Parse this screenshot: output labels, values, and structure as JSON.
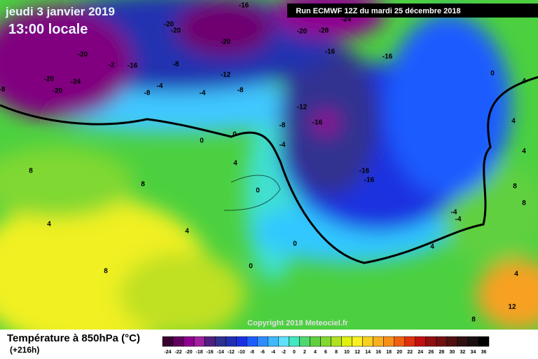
{
  "header": {
    "date": "jeudi 3 janvier 2019",
    "time": "13:00 locale",
    "run": "Run ECMWF 12Z du mardi 25 décembre 2018"
  },
  "map": {
    "copyright": "Copyright 2018 Meteociel.fr",
    "labels": [
      "-16",
      "-24",
      "-20",
      "-20",
      "-20",
      "-28",
      "-20",
      "-20",
      "-16",
      "-16",
      "-2",
      "-16",
      "-8",
      "-20",
      "-24",
      "-20",
      "-12",
      "-8",
      "-4",
      "-4",
      "-8",
      "-12",
      "-16",
      "-8",
      "0",
      "0",
      "-4",
      "4",
      "-16",
      "-16",
      "8",
      "8",
      "0",
      "4",
      "4",
      "8",
      "0",
      "4",
      "4",
      "4",
      "8",
      "8",
      "-4",
      "-4",
      "4",
      "0",
      "0",
      "8",
      "12",
      "4",
      "-8"
    ]
  },
  "legend": {
    "title": "Température à 850hPa (°C)",
    "lead": "(+216h)",
    "ticks": [
      "-24",
      "-22",
      "-20",
      "-18",
      "-16",
      "-14",
      "-12",
      "-10",
      "-8",
      "-6",
      "-4",
      "-2",
      "0",
      "2",
      "4",
      "6",
      "8",
      "10",
      "12",
      "14",
      "16",
      "18",
      "20",
      "22",
      "24",
      "26",
      "28",
      "30",
      "32",
      "34",
      "36"
    ],
    "colors": [
      "#3a0030",
      "#600060",
      "#900090",
      "#a020a0",
      "#502080",
      "#303090",
      "#2030b0",
      "#1a30e0",
      "#1e5cff",
      "#2e8cff",
      "#40b8ff",
      "#60e0ff",
      "#40e8c0",
      "#50d870",
      "#60d040",
      "#80d830",
      "#b0e020",
      "#e0f010",
      "#f8f020",
      "#f8d020",
      "#f8b020",
      "#f89018",
      "#f06010",
      "#e03010",
      "#c01010",
      "#901010",
      "#701010",
      "#501010",
      "#301010",
      "#181010",
      "#000000"
    ]
  }
}
